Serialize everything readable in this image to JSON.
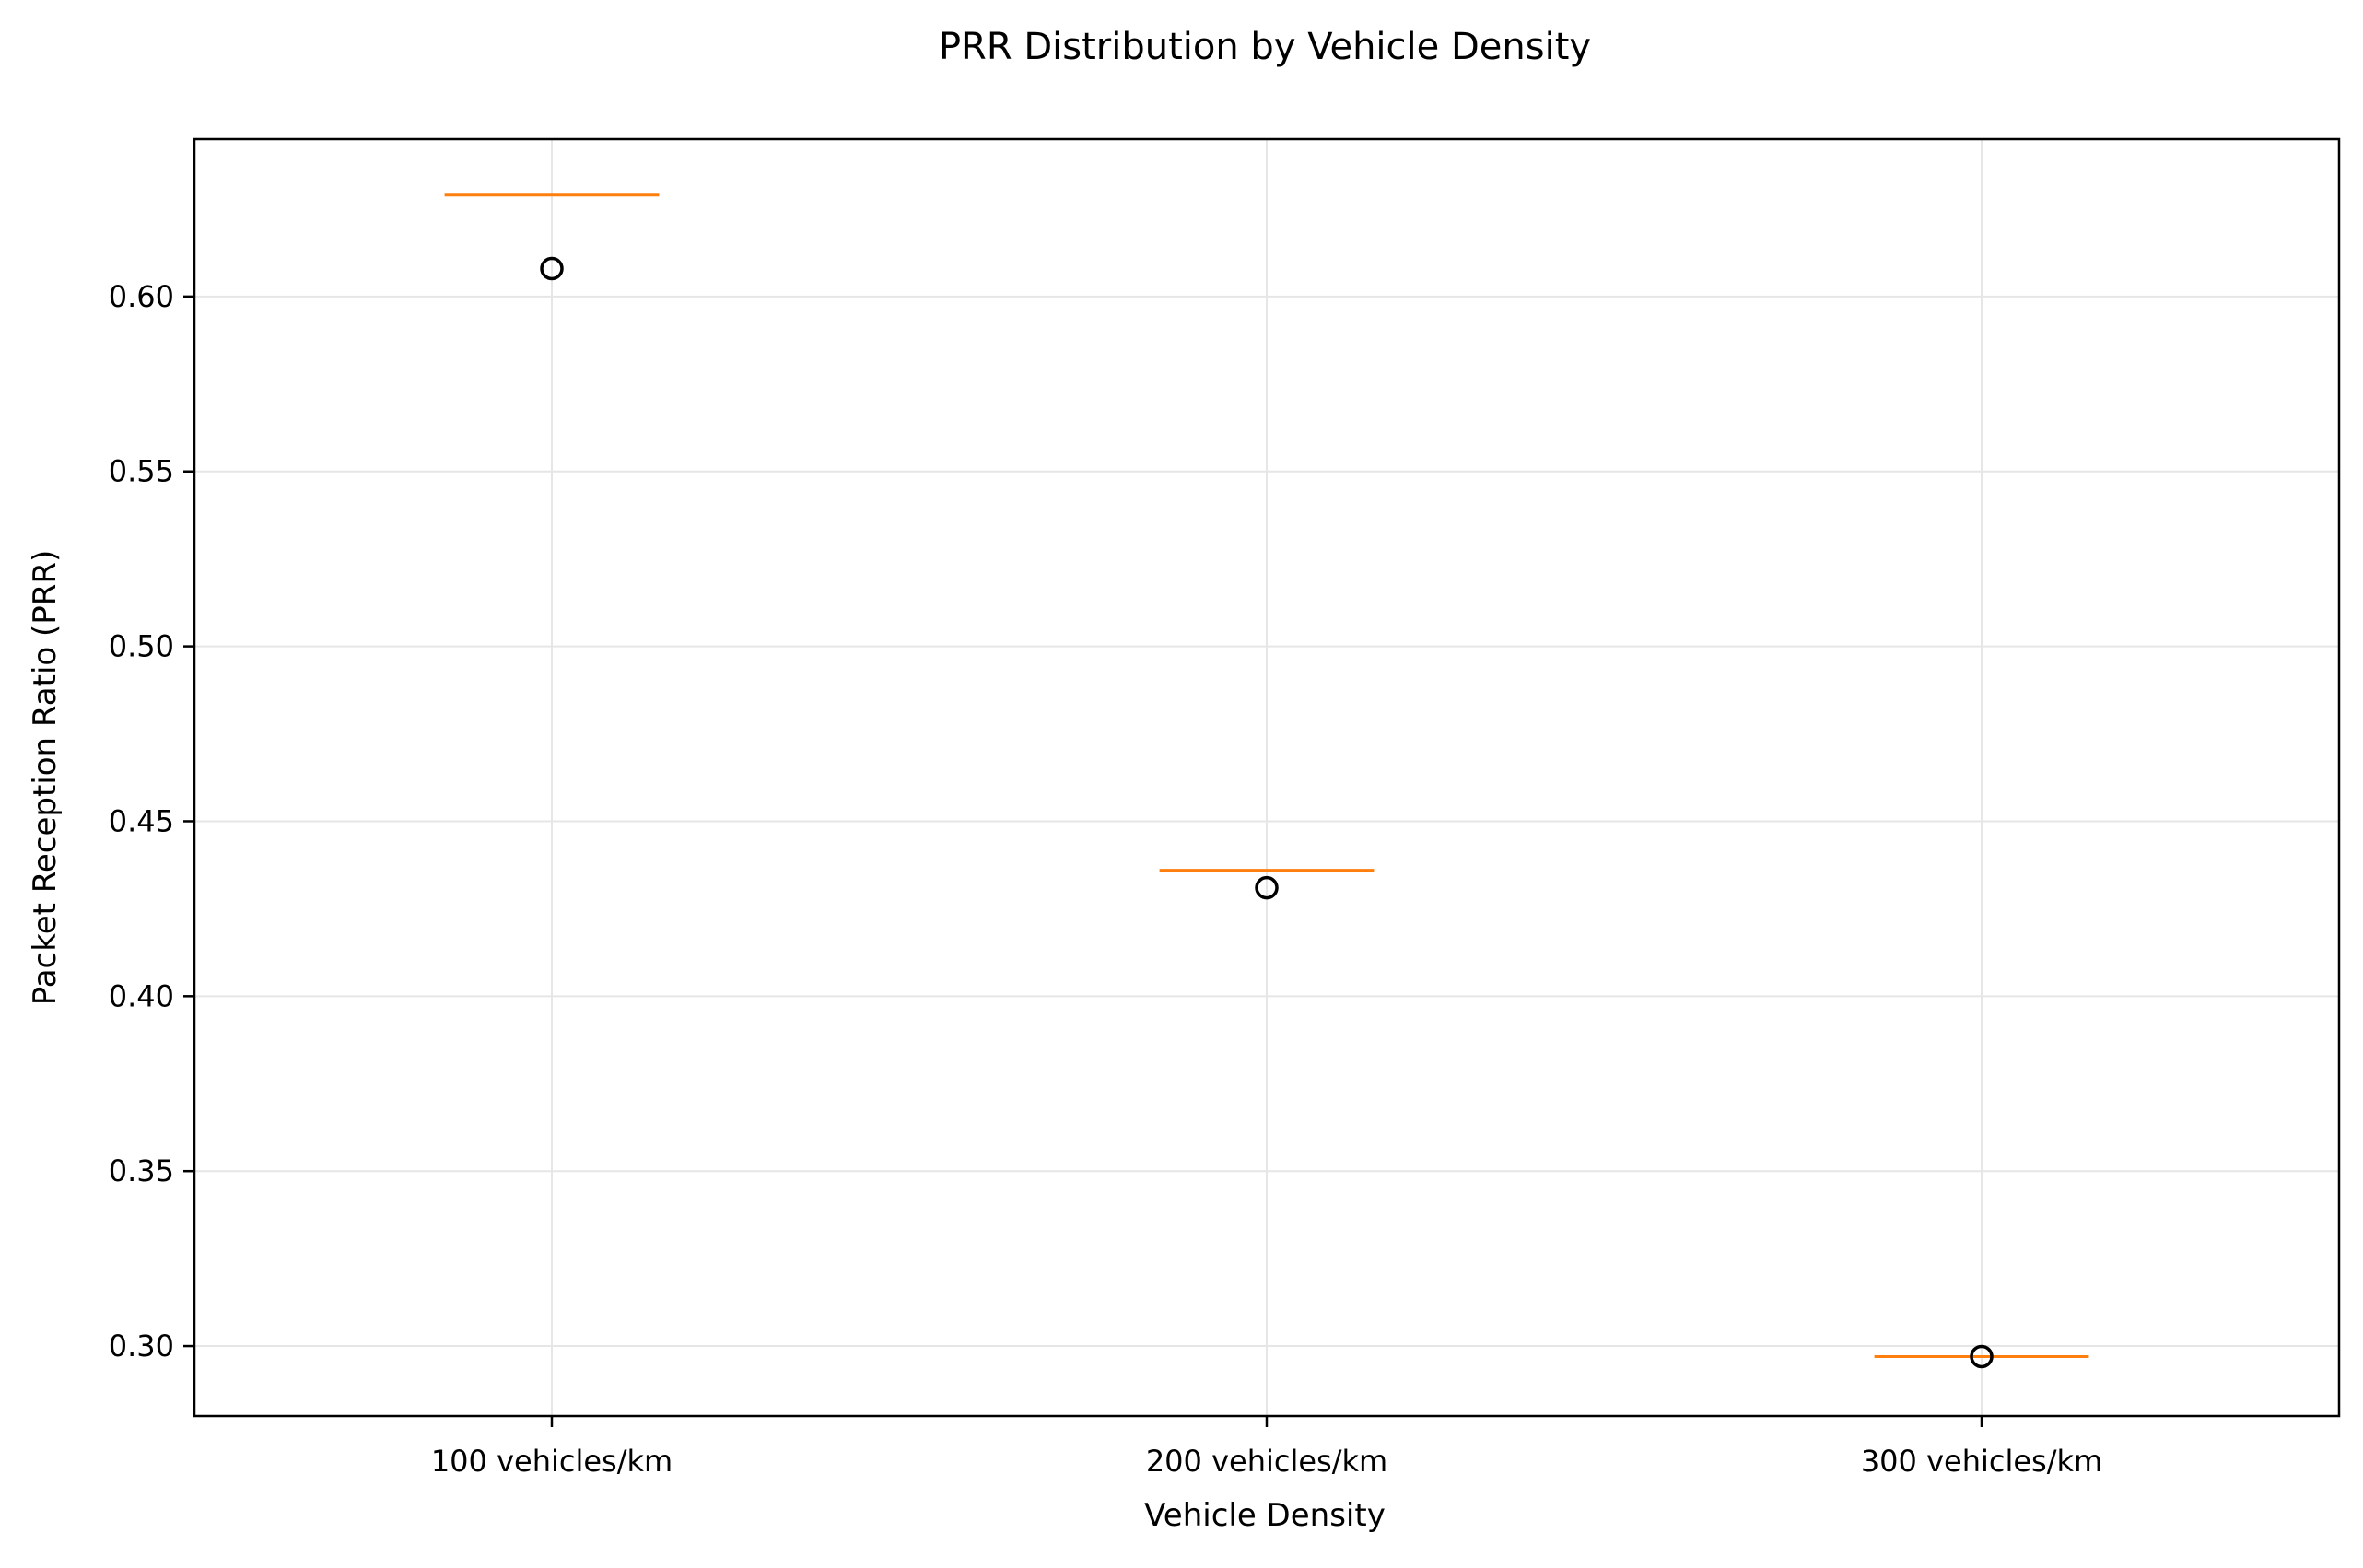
{
  "chart_data": {
    "type": "box",
    "title": "PRR Distribution by Vehicle Density",
    "xlabel": "Vehicle Density",
    "ylabel": "Packet Reception Ratio (PRR)",
    "categories": [
      "100 vehicles/km",
      "200 vehicles/km",
      "300 vehicles/km"
    ],
    "medians": [
      0.629,
      0.436,
      0.297
    ],
    "outliers": [
      [
        0.608
      ],
      [
        0.431
      ],
      [
        0.297
      ]
    ],
    "ylim": [
      0.28,
      0.645
    ],
    "yticks": [
      0.3,
      0.35,
      0.4,
      0.45,
      0.5,
      0.55,
      0.6
    ],
    "ytick_labels": [
      "0.30",
      "0.35",
      "0.40",
      "0.45",
      "0.50",
      "0.55",
      "0.60"
    ],
    "grid": true,
    "colors": {
      "median": "#ff7f0e",
      "outlier": "#000000",
      "grid": "#e6e6e6",
      "axes": "#000000"
    }
  }
}
